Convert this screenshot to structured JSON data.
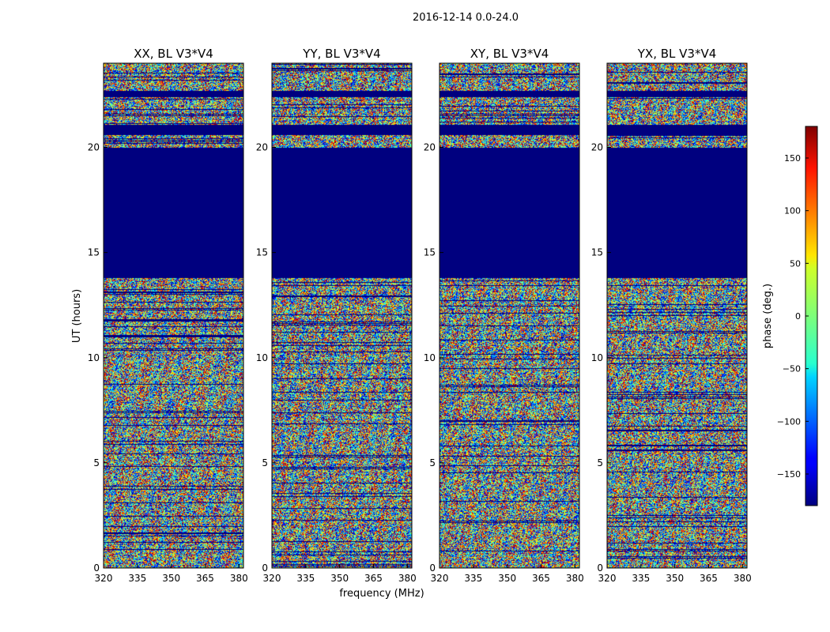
{
  "figure": {
    "suptitle": "2016-12-14 0.0-24.0"
  },
  "colors": {
    "background": "#ffffff",
    "frame": "#000000",
    "masked": "#00007f",
    "colormap": "jet"
  },
  "chart_data": {
    "type": "heatmap",
    "shared": {
      "xlabel": "frequency (MHz)",
      "ylabel": "UT (hours)",
      "xlim": [
        320,
        382
      ],
      "xticks": [
        320,
        335,
        350,
        365,
        380
      ],
      "ylim": [
        0,
        24
      ],
      "yticks": [
        0,
        5,
        10,
        15,
        20
      ]
    },
    "panels": [
      {
        "title": "XX, BL V3*V4",
        "masked_hours": [
          [
            13.8,
            20.0
          ],
          [
            20.6,
            21.1
          ],
          [
            22.4,
            22.7
          ]
        ]
      },
      {
        "title": "YY, BL V3*V4",
        "masked_hours": [
          [
            13.8,
            20.0
          ],
          [
            20.6,
            21.1
          ],
          [
            22.4,
            22.7
          ]
        ]
      },
      {
        "title": "XY, BL V3*V4",
        "masked_hours": [
          [
            13.8,
            20.0
          ],
          [
            20.6,
            21.1
          ],
          [
            22.4,
            22.7
          ]
        ]
      },
      {
        "title": "YX, BL V3*V4",
        "masked_hours": [
          [
            13.8,
            20.0
          ],
          [
            20.6,
            21.1
          ],
          [
            22.4,
            22.7
          ]
        ]
      }
    ],
    "colorbar": {
      "label": "phase (deg.)",
      "range": [
        -180,
        180
      ],
      "ticks": [
        150,
        100,
        50,
        0,
        -50,
        -100,
        -150
      ],
      "tick_labels": [
        "150",
        "100",
        "50",
        "0",
        "−50",
        "−100",
        "−150"
      ]
    }
  }
}
